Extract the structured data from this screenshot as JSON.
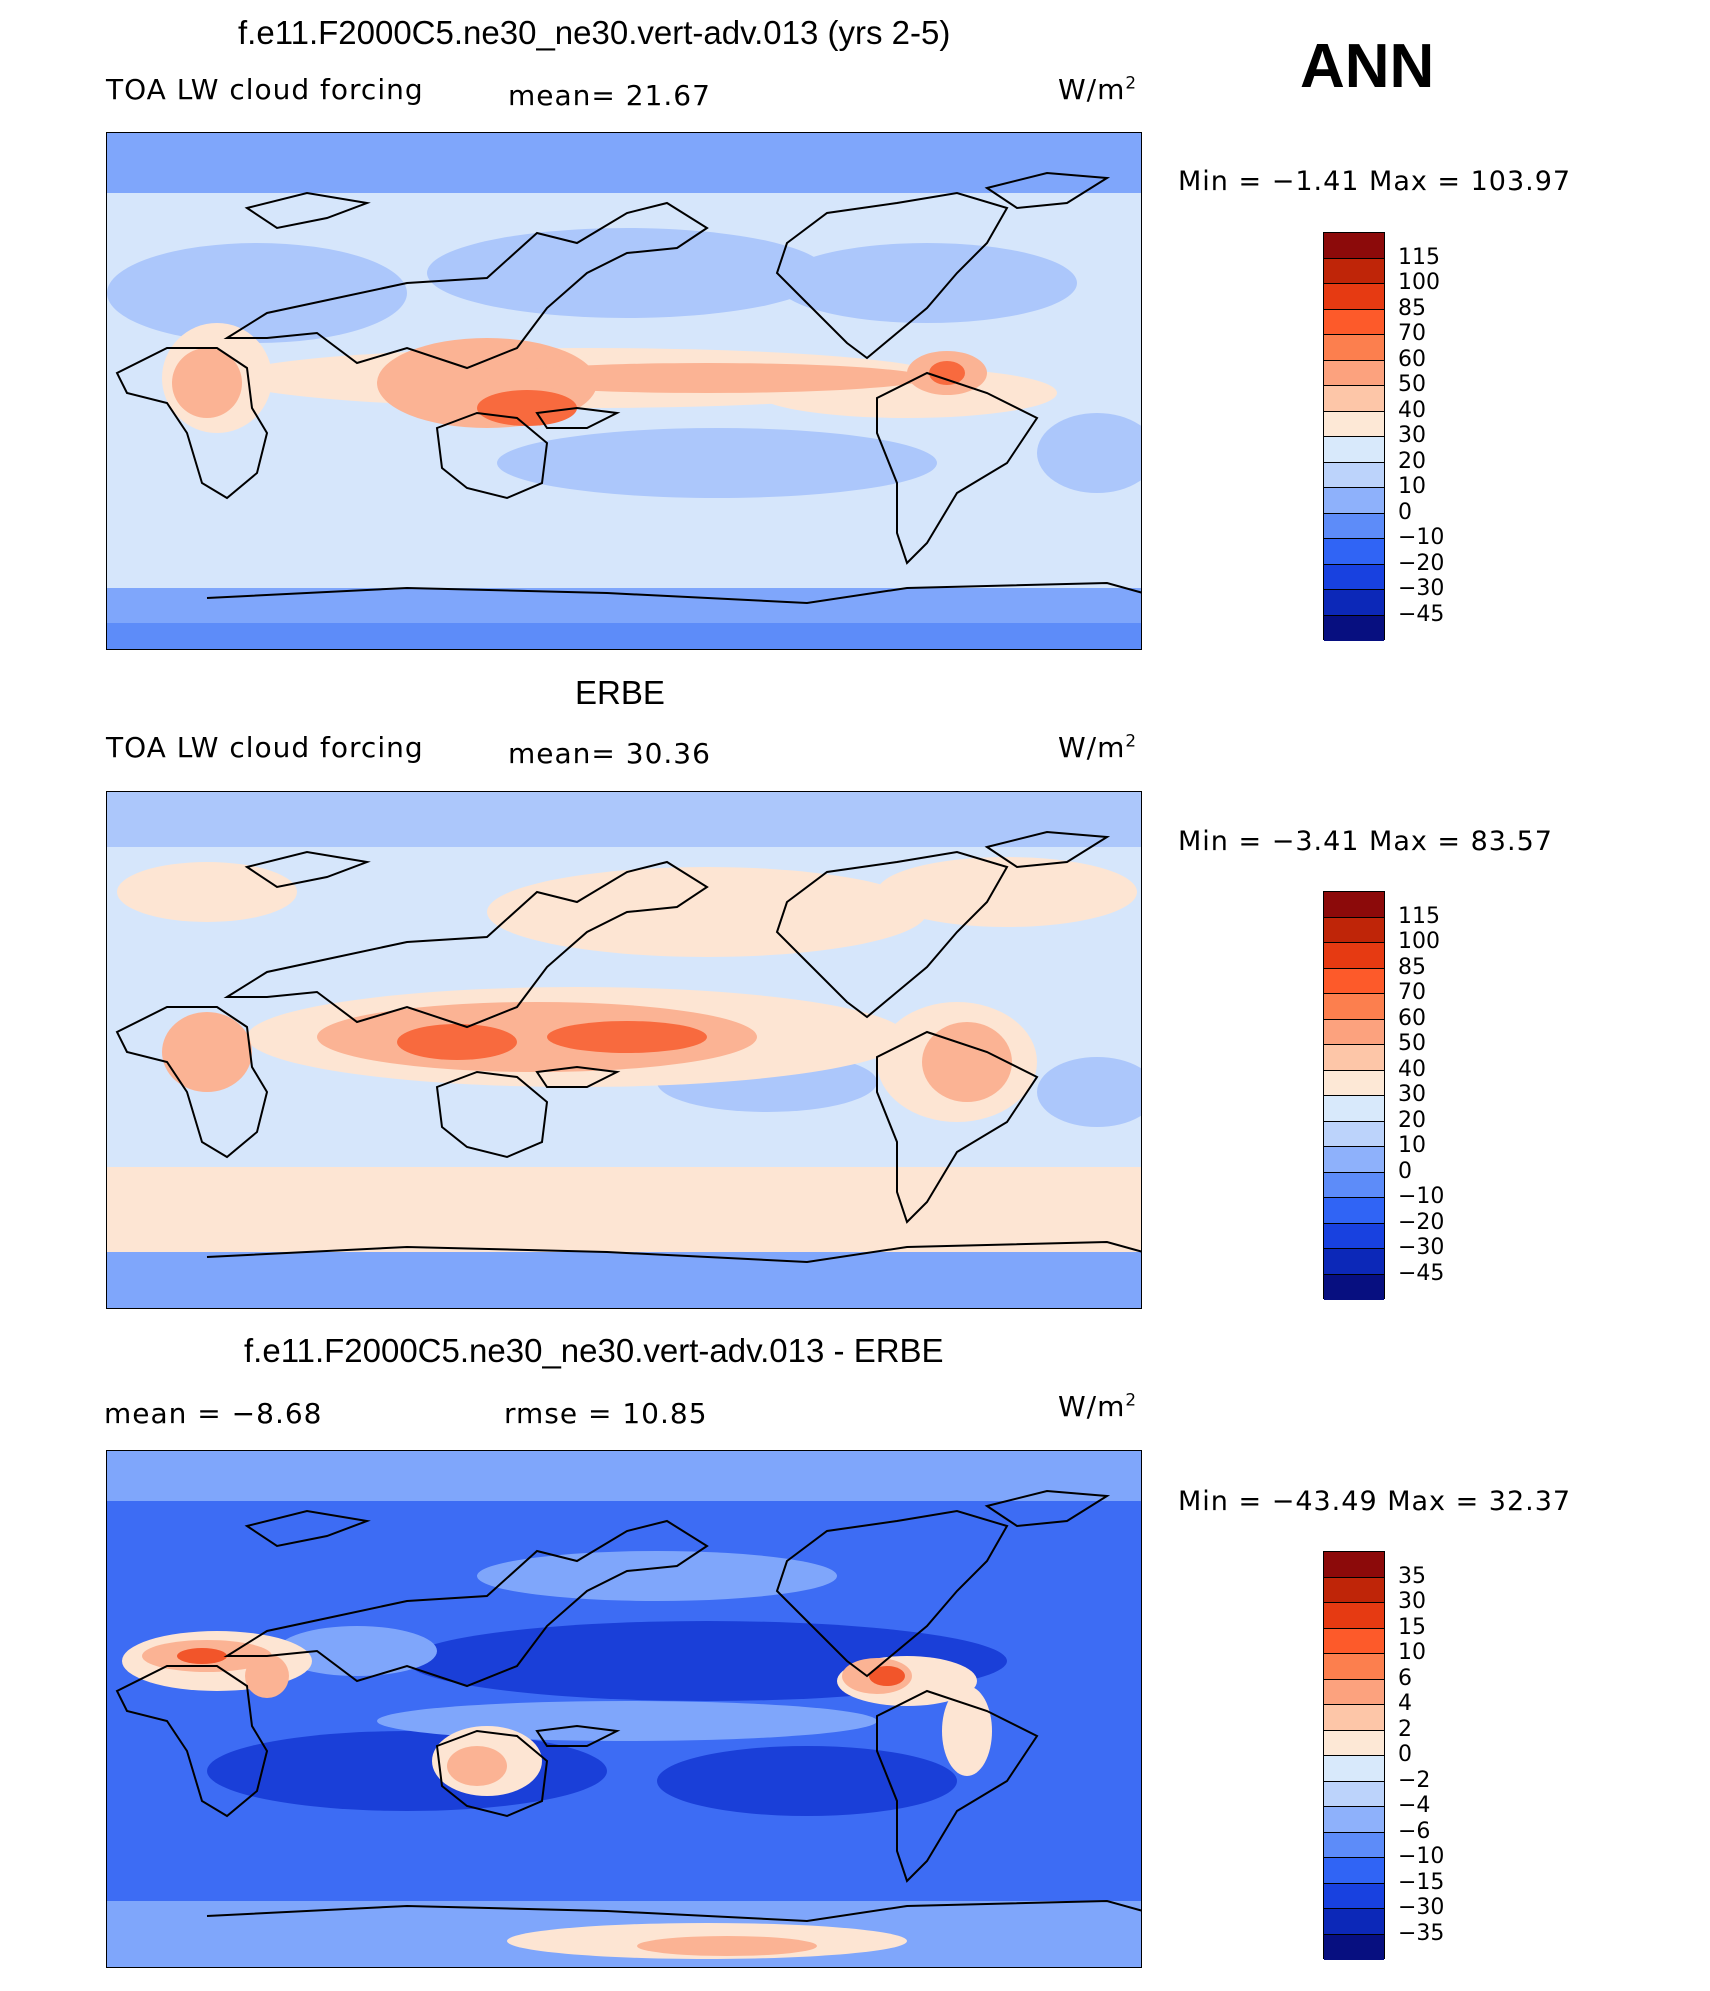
{
  "season": "ANN",
  "panels": [
    {
      "id": "model",
      "title": "f.e11.F2000C5.ne30_ne30.vert-adv.013 (yrs 2-5)",
      "left_label": "TOA LW cloud forcing",
      "center_label": "mean=   21.67",
      "units_base": "W/m",
      "units_sup": "2",
      "minmax": "Min  =   −1.41  Max  =  103.97",
      "levels": [
        "115",
        "100",
        "85",
        "70",
        "60",
        "50",
        "40",
        "30",
        "20",
        "10",
        "0",
        "−10",
        "−20",
        "−30",
        "−45"
      ]
    },
    {
      "id": "obs",
      "title": "ERBE",
      "left_label": "TOA LW cloud forcing",
      "center_label": "mean=   30.36",
      "units_base": "W/m",
      "units_sup": "2",
      "minmax": "Min  =   −3.41  Max  =   83.57",
      "levels": [
        "115",
        "100",
        "85",
        "70",
        "60",
        "50",
        "40",
        "30",
        "20",
        "10",
        "0",
        "−10",
        "−20",
        "−30",
        "−45"
      ]
    },
    {
      "id": "diff",
      "title": "f.e11.F2000C5.ne30_ne30.vert-adv.013 - ERBE",
      "left_label": "mean  =   −8.68",
      "center_label": "rmse  =   10.85",
      "units_base": "W/m",
      "units_sup": "2",
      "minmax": "Min  = −43.49  Max  =   32.37",
      "levels": [
        "35",
        "30",
        "15",
        "10",
        "6",
        "4",
        "2",
        "0",
        "−2",
        "−4",
        "−6",
        "−10",
        "−15",
        "−30",
        "−35"
      ]
    }
  ],
  "colorbar_colors": [
    "#8c0a0a",
    "#bf2508",
    "#e63a12",
    "#fd5a2a",
    "#fc7f4e",
    "#fca27e",
    "#fdc6a8",
    "#fde8d6",
    "#d8e9fb",
    "#bcd3fb",
    "#8eb1fb",
    "#5d8cf9",
    "#3064f5",
    "#1841e0",
    "#0c28b8",
    "#070f80"
  ],
  "map_colors": {
    "model": {
      "base": "#d6e6fb",
      "mid": "#acc7fb",
      "cool": "#7fa6fb",
      "warm": "#fde5d3",
      "hot": "#fbb394",
      "hotter": "#f86a3e"
    },
    "obs": {
      "base": "#d6e6fb",
      "mid": "#acc7fb",
      "cool": "#7fa6fb",
      "warm": "#fde5d3",
      "hot": "#fbb394",
      "hotter": "#f86a3e"
    },
    "diff": {
      "base": "#3d6cf4",
      "mid": "#7fa6fb",
      "cool": "#1a3fd8",
      "warm": "#fde5d3",
      "hot": "#fbb394",
      "hotter": "#f2552a"
    }
  }
}
